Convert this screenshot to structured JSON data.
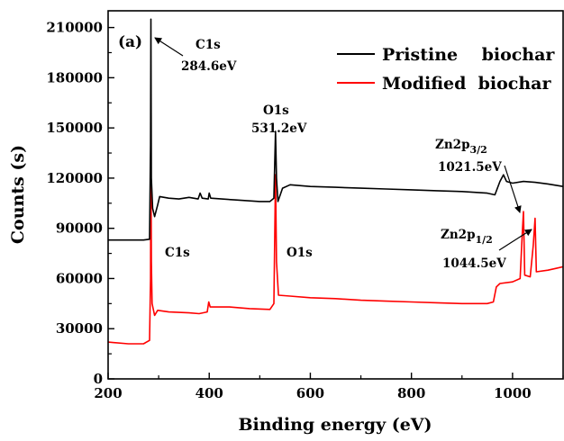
{
  "chart_data": {
    "type": "line",
    "panel_label": "(a)",
    "xlabel": "Binding energy (eV)",
    "ylabel": "Counts (s)",
    "xlim": [
      200,
      1100
    ],
    "ylim": [
      0,
      220000
    ],
    "x_ticks": [
      200,
      400,
      600,
      800,
      1000
    ],
    "y_ticks": [
      0,
      30000,
      60000,
      90000,
      120000,
      150000,
      180000,
      210000
    ],
    "grid": false,
    "legend_position": "top-right",
    "series": [
      {
        "name": "Pristine    biochar",
        "color": "#000000",
        "points": [
          [
            200,
            83000
          ],
          [
            270,
            83000
          ],
          [
            282,
            83500
          ],
          [
            284,
            140000
          ],
          [
            284.6,
            215000
          ],
          [
            285.5,
            120000
          ],
          [
            288,
            102000
          ],
          [
            292,
            97000
          ],
          [
            298,
            104000
          ],
          [
            302,
            109000
          ],
          [
            320,
            108000
          ],
          [
            340,
            107500
          ],
          [
            360,
            108500
          ],
          [
            378,
            107500
          ],
          [
            382,
            111000
          ],
          [
            386,
            108000
          ],
          [
            398,
            107500
          ],
          [
            400,
            111000
          ],
          [
            403,
            108000
          ],
          [
            450,
            107000
          ],
          [
            500,
            106000
          ],
          [
            520,
            106000
          ],
          [
            528,
            108000
          ],
          [
            531.2,
            148000
          ],
          [
            533,
            120000
          ],
          [
            536,
            106000
          ],
          [
            545,
            114000
          ],
          [
            560,
            116000
          ],
          [
            600,
            115000
          ],
          [
            650,
            114500
          ],
          [
            700,
            114000
          ],
          [
            750,
            113500
          ],
          [
            800,
            113000
          ],
          [
            850,
            112500
          ],
          [
            900,
            112000
          ],
          [
            950,
            111000
          ],
          [
            965,
            110000
          ],
          [
            975,
            118000
          ],
          [
            982,
            122000
          ],
          [
            988,
            118000
          ],
          [
            1000,
            117000
          ],
          [
            1021.5,
            118000
          ],
          [
            1044.5,
            117500
          ],
          [
            1070,
            116500
          ],
          [
            1100,
            115000
          ]
        ]
      },
      {
        "name": "Modified  biochar",
        "color": "#ff0000",
        "points": [
          [
            200,
            22000
          ],
          [
            240,
            21000
          ],
          [
            270,
            21000
          ],
          [
            282,
            23000
          ],
          [
            284,
            60000
          ],
          [
            284.6,
            145000
          ],
          [
            285.5,
            70000
          ],
          [
            287,
            45000
          ],
          [
            292,
            38000
          ],
          [
            298,
            41000
          ],
          [
            320,
            40000
          ],
          [
            360,
            39500
          ],
          [
            380,
            39000
          ],
          [
            396,
            40000
          ],
          [
            399,
            46000
          ],
          [
            402,
            43000
          ],
          [
            440,
            43000
          ],
          [
            480,
            42000
          ],
          [
            520,
            41500
          ],
          [
            528,
            45000
          ],
          [
            531.2,
            122000
          ],
          [
            533,
            70000
          ],
          [
            537,
            50000
          ],
          [
            560,
            49500
          ],
          [
            600,
            48500
          ],
          [
            650,
            48000
          ],
          [
            700,
            47000
          ],
          [
            750,
            46500
          ],
          [
            800,
            46000
          ],
          [
            850,
            45500
          ],
          [
            900,
            45000
          ],
          [
            950,
            45000
          ],
          [
            962,
            46000
          ],
          [
            968,
            55000
          ],
          [
            975,
            57000
          ],
          [
            1000,
            58000
          ],
          [
            1015,
            60000
          ],
          [
            1019,
            85000
          ],
          [
            1021.5,
            100000
          ],
          [
            1024,
            62000
          ],
          [
            1035,
            61000
          ],
          [
            1041,
            80000
          ],
          [
            1044.5,
            96000
          ],
          [
            1047,
            64000
          ],
          [
            1070,
            65000
          ],
          [
            1085,
            66000
          ],
          [
            1100,
            67000
          ]
        ]
      }
    ],
    "annotations": [
      {
        "text": "C1s",
        "x": 284.6,
        "y": 215000
      },
      {
        "text": "284.6eV",
        "x": 284.6,
        "y": 215000
      },
      {
        "text": "O1s",
        "x": 531.2,
        "y": 148000
      },
      {
        "text": "531.2eV",
        "x": 531.2,
        "y": 148000
      },
      {
        "text": "C1s",
        "x": 284.6,
        "y": 145000
      },
      {
        "text": "O1s",
        "x": 531.2,
        "y": 122000
      },
      {
        "text": "Zn2p",
        "sub": "3/2",
        "x": 1021.5,
        "y": 100000
      },
      {
        "text": "1021.5eV",
        "x": 1021.5,
        "y": 100000
      },
      {
        "text": "Zn2p",
        "sub": "1/2",
        "x": 1044.5,
        "y": 96000
      },
      {
        "text": "1044.5eV",
        "x": 1044.5,
        "y": 96000
      }
    ]
  }
}
